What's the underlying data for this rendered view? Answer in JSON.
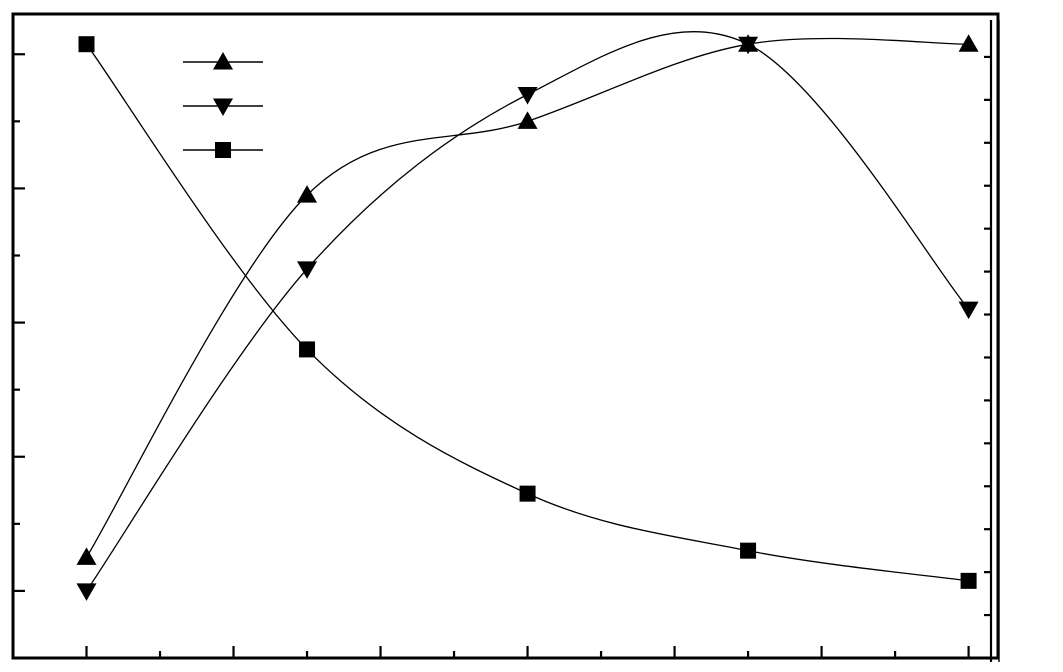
{
  "chart_data": {
    "type": "line",
    "title": "",
    "xlabel": "",
    "ylabel": "",
    "y2label": "",
    "x": [
      1,
      4,
      7,
      10,
      13
    ],
    "xlim": [
      0,
      13.4
    ],
    "ylim": [
      0,
      9.6
    ],
    "y2lim": [
      0,
      15
    ],
    "x_major_ticks": [
      1,
      3,
      5,
      7,
      9,
      11,
      13
    ],
    "x_minor_ticks": [
      2,
      4,
      6,
      8,
      10,
      12
    ],
    "y_major_ticks": [
      1,
      3,
      5,
      7,
      9
    ],
    "y_minor_ticks": [
      2,
      4,
      6,
      8
    ],
    "y2_ticks": [
      1,
      2,
      3,
      4,
      5,
      6,
      7,
      8,
      9,
      10,
      11,
      12,
      13,
      14
    ],
    "grid": false,
    "legend_position": "top-left",
    "series": [
      {
        "marker": "triangle-up",
        "axis": "left",
        "values": [
          1.5,
          6.9,
          8.0,
          9.15,
          9.15
        ]
      },
      {
        "marker": "triangle-down",
        "axis": "left",
        "values": [
          1.0,
          5.8,
          8.4,
          9.15,
          5.2
        ]
      },
      {
        "marker": "square",
        "axis": "left",
        "values": [
          9.15,
          4.6,
          2.45,
          1.6,
          1.15
        ]
      }
    ]
  }
}
